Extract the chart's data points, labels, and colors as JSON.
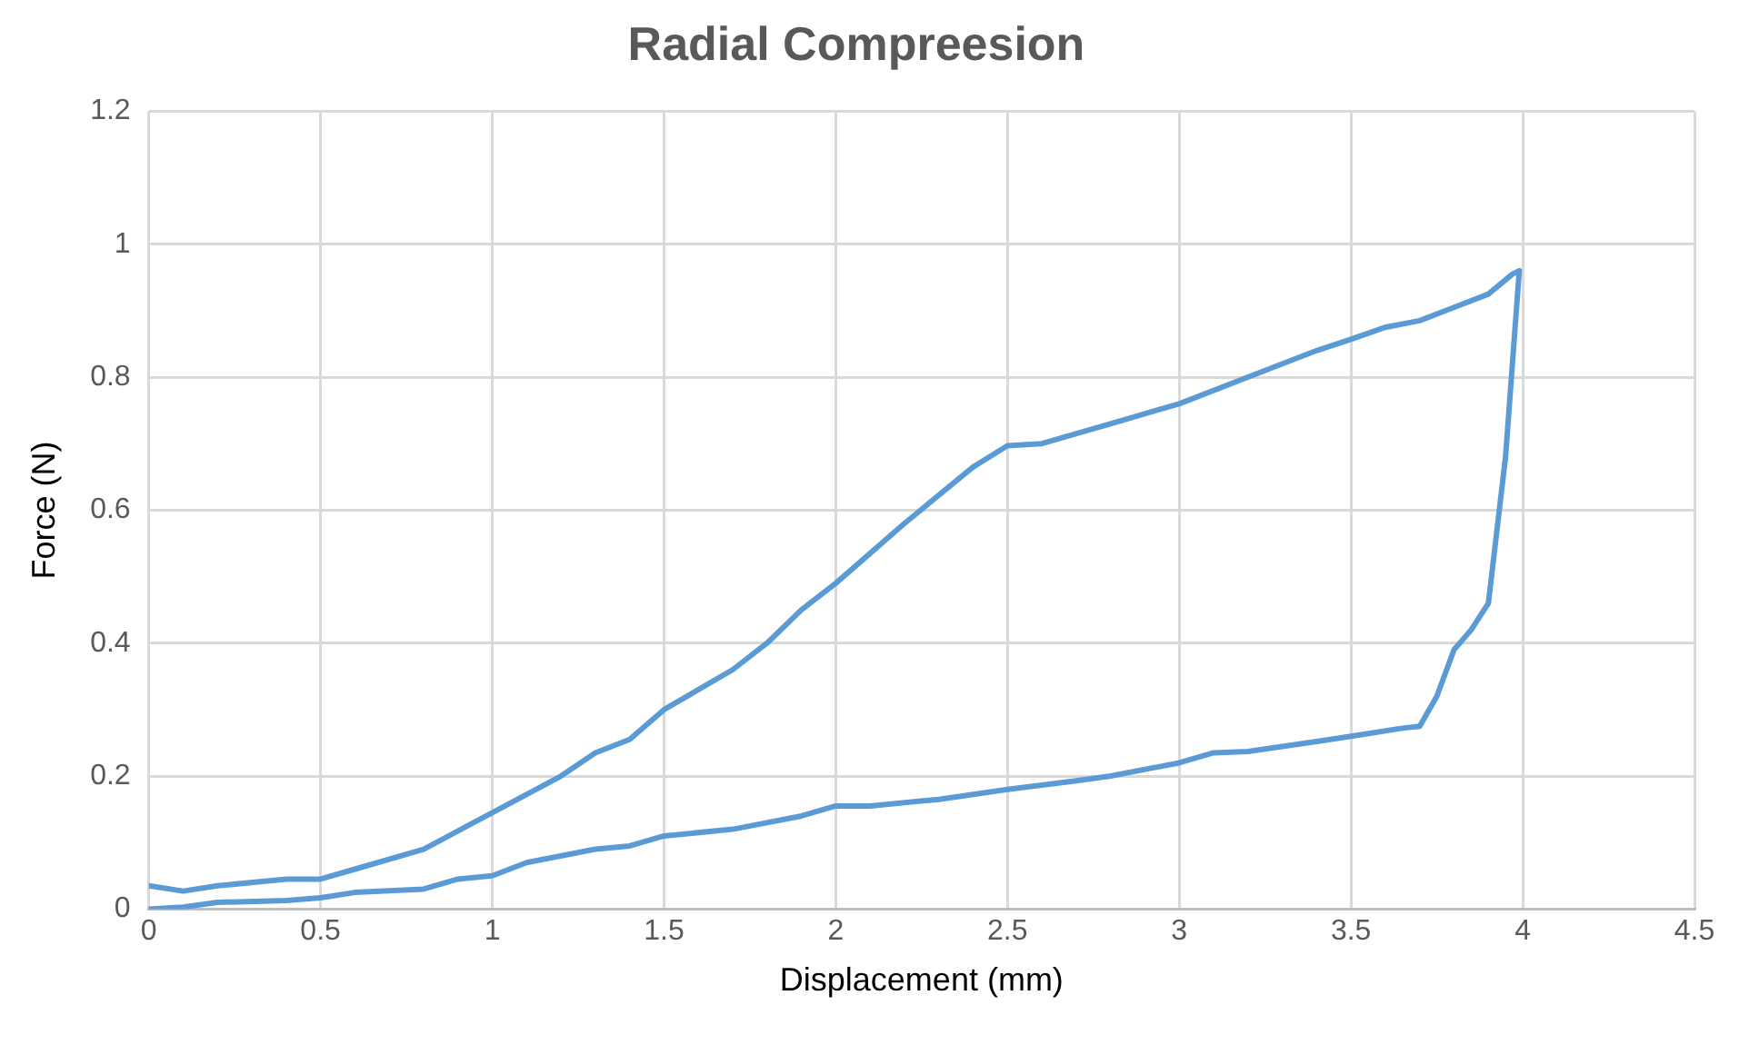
{
  "chart_data": {
    "type": "line",
    "title": "Radial Compreesion",
    "xlabel": "Displacement (mm)",
    "ylabel": "Force (N)",
    "xlim": [
      0,
      4.5
    ],
    "xticks": [
      0,
      0.5,
      1,
      1.5,
      2,
      2.5,
      3,
      3.5,
      4,
      4.5
    ],
    "ylim": [
      0,
      1.2
    ],
    "yticks": [
      0,
      0.2,
      0.4,
      0.6,
      0.8,
      1,
      1.2
    ],
    "grid": true,
    "legend": false,
    "marker": "none",
    "line_style": "solid",
    "series": [
      {
        "color": "#5b9bd5",
        "x": [
          0,
          0.1,
          0.2,
          0.4,
          0.5,
          0.6,
          0.8,
          0.9,
          1.0,
          1.1,
          1.3,
          1.4,
          1.5,
          1.7,
          1.9,
          2.0,
          2.1,
          2.3,
          2.5,
          2.7,
          2.8,
          3.0,
          3.1,
          3.2,
          3.4,
          3.5,
          3.65,
          3.7,
          3.75,
          3.8,
          3.85,
          3.9,
          3.95,
          3.99,
          3.97,
          3.9,
          3.8,
          3.7,
          3.6,
          3.5,
          3.4,
          3.2,
          3.0,
          2.8,
          2.6,
          2.5,
          2.4,
          2.2,
          2.0,
          1.9,
          1.8,
          1.7,
          1.5,
          1.4,
          1.3,
          1.2,
          1.0,
          0.8,
          0.6,
          0.5,
          0.4,
          0.2,
          0.1,
          0
        ],
        "values": [
          0,
          0.003,
          0.01,
          0.013,
          0.017,
          0.025,
          0.03,
          0.045,
          0.05,
          0.07,
          0.09,
          0.095,
          0.11,
          0.12,
          0.14,
          0.155,
          0.155,
          0.165,
          0.18,
          0.193,
          0.2,
          0.22,
          0.235,
          0.237,
          0.252,
          0.26,
          0.272,
          0.275,
          0.32,
          0.39,
          0.42,
          0.46,
          0.68,
          0.96,
          0.955,
          0.925,
          0.905,
          0.885,
          0.875,
          0.857,
          0.84,
          0.8,
          0.76,
          0.73,
          0.7,
          0.697,
          0.665,
          0.58,
          0.49,
          0.45,
          0.4,
          0.36,
          0.3,
          0.255,
          0.235,
          0.2,
          0.145,
          0.09,
          0.06,
          0.045,
          0.045,
          0.035,
          0.027,
          0.035
        ]
      }
    ]
  }
}
